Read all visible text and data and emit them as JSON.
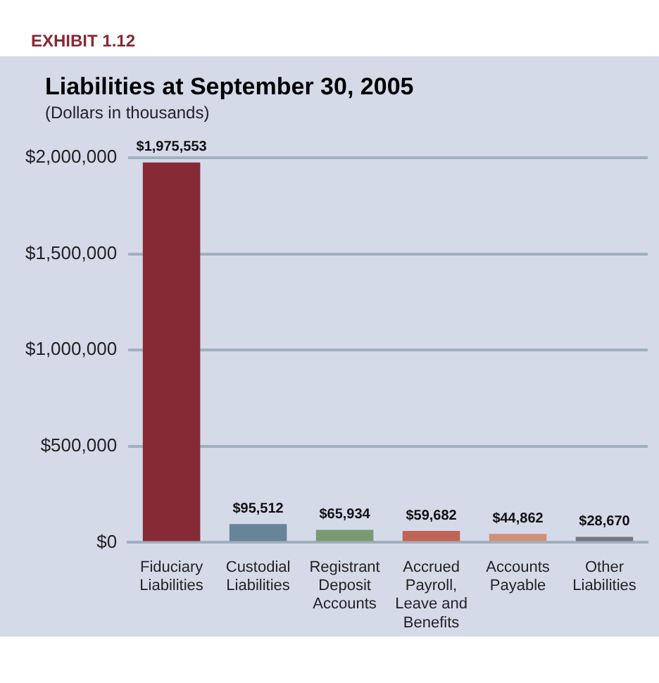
{
  "chart_data": {
    "type": "bar",
    "title": "Liabilities at September 30, 2005",
    "subtitle": "(Dollars in thousands)",
    "annotations": [
      "EXHIBIT 1.12"
    ],
    "categories": [
      "Fiduciary Liabilities",
      "Custodial Liabilities",
      "Registrant Deposit Accounts",
      "Accrued Payroll, Leave and Benefits",
      "Accounts Payable",
      "Other Liabilities"
    ],
    "values": [
      1975553,
      95512,
      65934,
      59682,
      44862,
      28670
    ],
    "colors": [
      "#862a36",
      "#678597",
      "#7a9a72",
      "#c06556",
      "#cf8f78",
      "#727780"
    ],
    "value_labels": [
      "$1,975,553",
      "$95,512",
      "$65,934",
      "$59,682",
      "$44,862",
      "$28,670"
    ],
    "ylim": [
      0,
      2000000
    ],
    "yticks": [
      {
        "value": 0,
        "label": "$0"
      },
      {
        "value": 500000,
        "label": "$500,000"
      },
      {
        "value": 1000000,
        "label": "$1,000,000"
      },
      {
        "value": 1500000,
        "label": "$1,500,000"
      },
      {
        "value": 2000000,
        "label": "$2,000,000"
      }
    ],
    "grid": "y",
    "legend": false
  }
}
